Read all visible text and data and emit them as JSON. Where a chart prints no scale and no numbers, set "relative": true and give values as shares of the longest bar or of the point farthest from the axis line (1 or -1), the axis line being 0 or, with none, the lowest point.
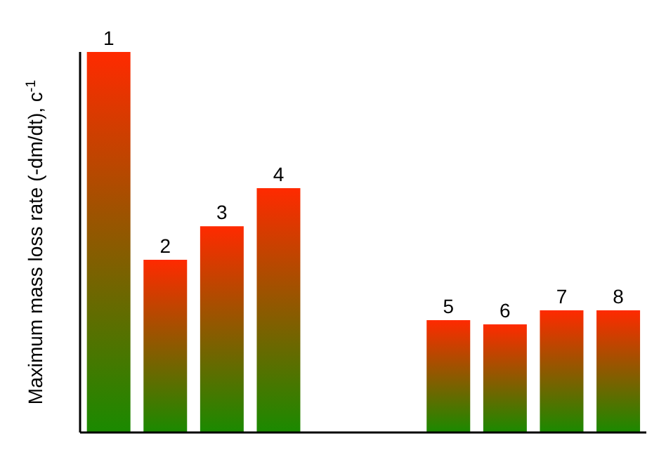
{
  "chart_data": {
    "type": "bar",
    "ylabel": "Maximum mass loss rate (-dm/dt), c$^{-1}$",
    "relative": true,
    "categories": [
      "1",
      "2",
      "3",
      "4",
      null,
      null,
      "5",
      "6",
      "7",
      "8"
    ],
    "values": [
      1,
      0.454,
      0.542,
      0.642,
      null,
      null,
      0.295,
      0.284,
      0.321,
      0.321
    ],
    "color": "#ff2a00"
  }
}
